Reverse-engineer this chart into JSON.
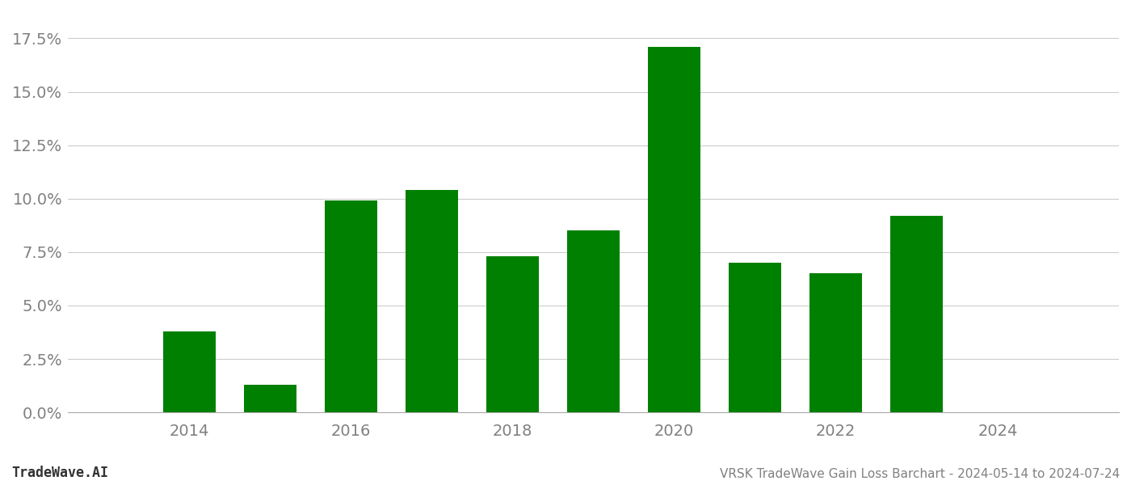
{
  "years": [
    2014,
    2015,
    2016,
    2017,
    2018,
    2019,
    2020,
    2021,
    2022,
    2023
  ],
  "values": [
    0.038,
    0.013,
    0.099,
    0.104,
    0.073,
    0.085,
    0.171,
    0.07,
    0.065,
    0.092
  ],
  "bar_color": "#008000",
  "footer_left": "TradeWave.AI",
  "footer_right": "VRSK TradeWave Gain Loss Barchart - 2024-05-14 to 2024-07-24",
  "ylim": [
    0.0,
    0.185
  ],
  "yticks": [
    0.0,
    0.025,
    0.05,
    0.075,
    0.1,
    0.125,
    0.15,
    0.175
  ],
  "xticks": [
    2014,
    2016,
    2018,
    2020,
    2022,
    2024
  ],
  "xlim": [
    2012.5,
    2025.5
  ],
  "background_color": "#ffffff",
  "grid_color": "#cccccc",
  "text_color": "#808080",
  "bar_width": 0.65
}
